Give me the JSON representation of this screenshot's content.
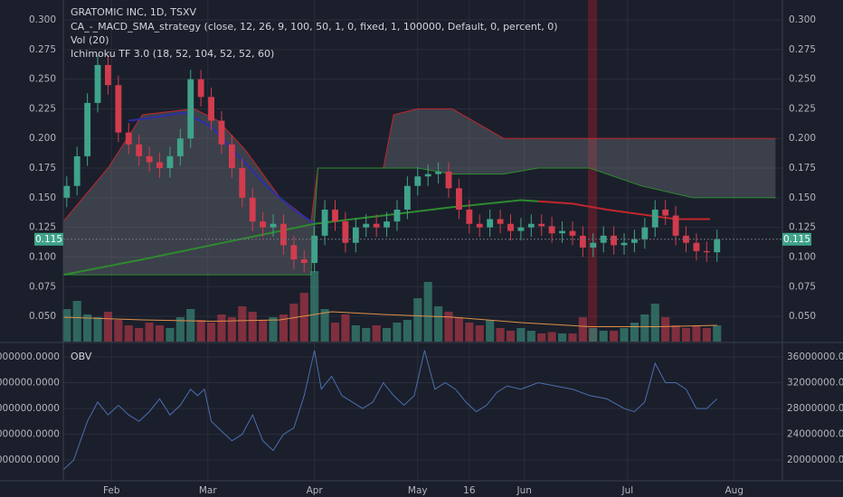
{
  "chart_data": {
    "type": "candlestick",
    "title": "GRATOMIC INC, 1D, TSXV",
    "indicators": [
      "CA_-_MACD_SMA_strategy (close, 12, 26, 9, 100, 50, 1, 0, fixed, 1, 100000, Default, 0, percent, 0)",
      "Vol (20)",
      "Ichimoku TF 3.0 (18, 52, 104, 52, 52, 60)"
    ],
    "grid": true,
    "xlim": [
      17,
      226
    ],
    "xticks": [
      {
        "value": 31,
        "label": "Feb"
      },
      {
        "value": 59,
        "label": "Mar"
      },
      {
        "value": 90,
        "label": "Apr"
      },
      {
        "value": 120,
        "label": "May"
      },
      {
        "value": 135,
        "label": "16"
      },
      {
        "value": 151,
        "label": "Jun"
      },
      {
        "value": 181,
        "label": "Jul"
      },
      {
        "value": 212,
        "label": "Aug"
      }
    ],
    "ylim": [
      0.0287,
      0.3168
    ],
    "yticks": [
      {
        "value": 0.05,
        "label": "0.050"
      },
      {
        "value": 0.075,
        "label": "0.075"
      },
      {
        "value": 0.1,
        "label": "0.100"
      },
      {
        "value": 0.125,
        "label": "0.125"
      },
      {
        "value": 0.15,
        "label": "0.150"
      },
      {
        "value": 0.175,
        "label": "0.175"
      },
      {
        "value": 0.2,
        "label": "0.200"
      },
      {
        "value": 0.225,
        "label": "0.225"
      },
      {
        "value": 0.25,
        "label": "0.250"
      },
      {
        "value": 0.275,
        "label": "0.275"
      },
      {
        "value": 0.3,
        "label": "0.300"
      }
    ],
    "up_color": "#3fa38a",
    "down_color": "#d23c4d",
    "x": [
      18,
      21,
      24,
      27,
      30,
      33,
      36,
      39,
      42,
      45,
      48,
      51,
      54,
      57,
      60,
      63,
      66,
      69,
      72,
      75,
      78,
      81,
      84,
      87,
      90,
      93,
      96,
      99,
      102,
      105,
      108,
      111,
      114,
      117,
      120,
      123,
      126,
      129,
      132,
      135,
      138,
      141,
      144,
      147,
      150,
      153,
      156,
      159,
      162,
      165,
      168,
      171,
      174,
      177,
      180,
      183,
      186,
      189,
      192,
      195,
      198,
      201,
      204,
      207
    ],
    "open": [
      0.15,
      0.16,
      0.185,
      0.23,
      0.262,
      0.245,
      0.205,
      0.195,
      0.185,
      0.18,
      0.175,
      0.185,
      0.2,
      0.25,
      0.235,
      0.215,
      0.195,
      0.175,
      0.15,
      0.13,
      0.125,
      0.128,
      0.11,
      0.098,
      0.095,
      0.118,
      0.14,
      0.13,
      0.112,
      0.125,
      0.128,
      0.125,
      0.13,
      0.14,
      0.16,
      0.168,
      0.17,
      0.172,
      0.158,
      0.14,
      0.128,
      0.125,
      0.132,
      0.128,
      0.122,
      0.125,
      0.128,
      0.126,
      0.12,
      0.122,
      0.118,
      0.108,
      0.112,
      0.118,
      0.11,
      0.112,
      0.115,
      0.125,
      0.14,
      0.135,
      0.118,
      0.112,
      0.105,
      0.104
    ],
    "high": [
      0.168,
      0.193,
      0.238,
      0.27,
      0.27,
      0.253,
      0.213,
      0.203,
      0.193,
      0.188,
      0.193,
      0.208,
      0.258,
      0.258,
      0.243,
      0.223,
      0.203,
      0.183,
      0.158,
      0.138,
      0.136,
      0.136,
      0.118,
      0.106,
      0.126,
      0.148,
      0.148,
      0.138,
      0.133,
      0.136,
      0.136,
      0.138,
      0.148,
      0.168,
      0.176,
      0.178,
      0.18,
      0.18,
      0.166,
      0.148,
      0.136,
      0.14,
      0.14,
      0.136,
      0.133,
      0.136,
      0.136,
      0.134,
      0.13,
      0.13,
      0.126,
      0.12,
      0.126,
      0.126,
      0.12,
      0.123,
      0.133,
      0.148,
      0.148,
      0.143,
      0.126,
      0.12,
      0.113,
      0.123
    ],
    "low": [
      0.142,
      0.152,
      0.177,
      0.222,
      0.237,
      0.197,
      0.187,
      0.177,
      0.172,
      0.167,
      0.167,
      0.177,
      0.192,
      0.227,
      0.207,
      0.187,
      0.167,
      0.142,
      0.122,
      0.117,
      0.117,
      0.102,
      0.09,
      0.087,
      0.087,
      0.11,
      0.122,
      0.104,
      0.104,
      0.117,
      0.117,
      0.117,
      0.122,
      0.132,
      0.152,
      0.16,
      0.162,
      0.15,
      0.132,
      0.12,
      0.117,
      0.117,
      0.12,
      0.114,
      0.114,
      0.117,
      0.118,
      0.112,
      0.112,
      0.11,
      0.1,
      0.1,
      0.104,
      0.102,
      0.102,
      0.104,
      0.107,
      0.117,
      0.127,
      0.11,
      0.104,
      0.097,
      0.096,
      0.096
    ],
    "close": [
      0.16,
      0.185,
      0.23,
      0.262,
      0.245,
      0.205,
      0.195,
      0.185,
      0.18,
      0.175,
      0.185,
      0.2,
      0.25,
      0.235,
      0.215,
      0.195,
      0.175,
      0.15,
      0.13,
      0.125,
      0.128,
      0.11,
      0.098,
      0.095,
      0.118,
      0.14,
      0.13,
      0.112,
      0.125,
      0.128,
      0.125,
      0.13,
      0.14,
      0.16,
      0.168,
      0.17,
      0.172,
      0.158,
      0.14,
      0.128,
      0.125,
      0.132,
      0.128,
      0.122,
      0.125,
      0.128,
      0.126,
      0.12,
      0.122,
      0.118,
      0.108,
      0.112,
      0.118,
      0.11,
      0.112,
      0.115,
      0.125,
      0.14,
      0.135,
      0.118,
      0.112,
      0.105,
      0.104,
      0.115
    ],
    "volume": {
      "lim": [
        0,
        3000000
      ],
      "values": [
        1200000,
        1500000,
        1000000,
        900000,
        1100000,
        800000,
        600000,
        500000,
        700000,
        600000,
        500000,
        900000,
        1200000,
        800000,
        700000,
        1000000,
        900000,
        1300000,
        1100000,
        800000,
        900000,
        1000000,
        1400000,
        1800000,
        2600000,
        1200000,
        700000,
        1000000,
        600000,
        500000,
        600000,
        500000,
        700000,
        800000,
        1600000,
        2200000,
        1300000,
        1100000,
        900000,
        700000,
        600000,
        800000,
        500000,
        400000,
        500000,
        400000,
        300000,
        350000,
        300000,
        300000,
        900000,
        500000,
        400000,
        400000,
        500000,
        700000,
        1000000,
        1400000,
        900000,
        600000,
        500000,
        600000,
        500000,
        600000
      ],
      "ma": {
        "color": "#e0904a",
        "x": [
          17,
          40,
          60,
          80,
          95,
          110,
          130,
          150,
          170,
          190,
          207
        ],
        "values": [
          900000,
          800000,
          750000,
          800000,
          1100000,
          1000000,
          900000,
          700000,
          550000,
          550000,
          600000
        ]
      }
    },
    "lines": [
      {
        "color": "#2d2fa8",
        "x": [
          36,
          44,
          52,
          60,
          68,
          76,
          84,
          90
        ],
        "values": [
          0.215,
          0.218,
          0.222,
          0.21,
          0.185,
          0.16,
          0.14,
          0.128
        ]
      },
      {
        "color": "#2e8b2e",
        "x": [
          17,
          40,
          60,
          80,
          90,
          110,
          130,
          150,
          155
        ],
        "values": [
          0.085,
          0.098,
          0.11,
          0.122,
          0.128,
          0.135,
          0.142,
          0.148,
          0.147
        ]
      },
      {
        "color": "#c0262d",
        "x": [
          155,
          165,
          175,
          185,
          195,
          205
        ],
        "values": [
          0.147,
          0.145,
          0.14,
          0.136,
          0.132,
          0.132
        ]
      }
    ],
    "cloud": {
      "color": "#7a7d86",
      "x": [
        17,
        30,
        40,
        55,
        62,
        70,
        80,
        89,
        91,
        110,
        113,
        120,
        130,
        145,
        155,
        170,
        185,
        200,
        215,
        224
      ],
      "upper": [
        0.13,
        0.175,
        0.22,
        0.225,
        0.215,
        0.19,
        0.15,
        0.13,
        0.175,
        0.175,
        0.22,
        0.225,
        0.225,
        0.2,
        0.2,
        0.2,
        0.2,
        0.2,
        0.2,
        0.2
      ],
      "lower": [
        0.085,
        0.085,
        0.085,
        0.085,
        0.085,
        0.085,
        0.085,
        0.085,
        0.175,
        0.175,
        0.175,
        0.175,
        0.17,
        0.17,
        0.175,
        0.175,
        0.16,
        0.15,
        0.15,
        0.15
      ]
    },
    "last_price": 0.115,
    "obv": {
      "title": "OBV",
      "color": "#4a6fb0",
      "ylim": [
        16800000,
        38100000
      ],
      "yticks": [
        {
          "value": 20000000,
          "label": "20000000.0000"
        },
        {
          "value": 24000000,
          "label": "24000000.0000"
        },
        {
          "value": 28000000,
          "label": "28000000.0000"
        },
        {
          "value": 32000000,
          "label": "32000000.0000"
        },
        {
          "value": 36000000,
          "label": "36000000.0000"
        }
      ],
      "x": [
        17,
        20,
        24,
        27,
        30,
        33,
        36,
        39,
        42,
        45,
        48,
        51,
        54,
        56,
        58,
        60,
        63,
        66,
        69,
        72,
        75,
        78,
        81,
        84,
        87,
        90,
        92,
        95,
        98,
        101,
        104,
        107,
        110,
        113,
        116,
        119,
        122,
        125,
        128,
        131,
        134,
        137,
        140,
        143,
        146,
        150,
        155,
        160,
        165,
        170,
        175,
        180,
        183,
        186,
        189,
        192,
        195,
        198,
        201,
        204,
        207
      ],
      "values": [
        18500000,
        20000000,
        26000000,
        29000000,
        27000000,
        28500000,
        27000000,
        26000000,
        27500000,
        29500000,
        27000000,
        28500000,
        31000000,
        30000000,
        31000000,
        26000000,
        24500000,
        23000000,
        24000000,
        27000000,
        23000000,
        21500000,
        24000000,
        25000000,
        30000000,
        37000000,
        31000000,
        33000000,
        30000000,
        29000000,
        28000000,
        29000000,
        32000000,
        30000000,
        28500000,
        30000000,
        37000000,
        31000000,
        32000000,
        31000000,
        29000000,
        27500000,
        28500000,
        30500000,
        31500000,
        31000000,
        32000000,
        31500000,
        31000000,
        30000000,
        29500000,
        28000000,
        27500000,
        29000000,
        35000000,
        32000000,
        32000000,
        31000000,
        28000000,
        28000000,
        29500000
      ]
    }
  }
}
